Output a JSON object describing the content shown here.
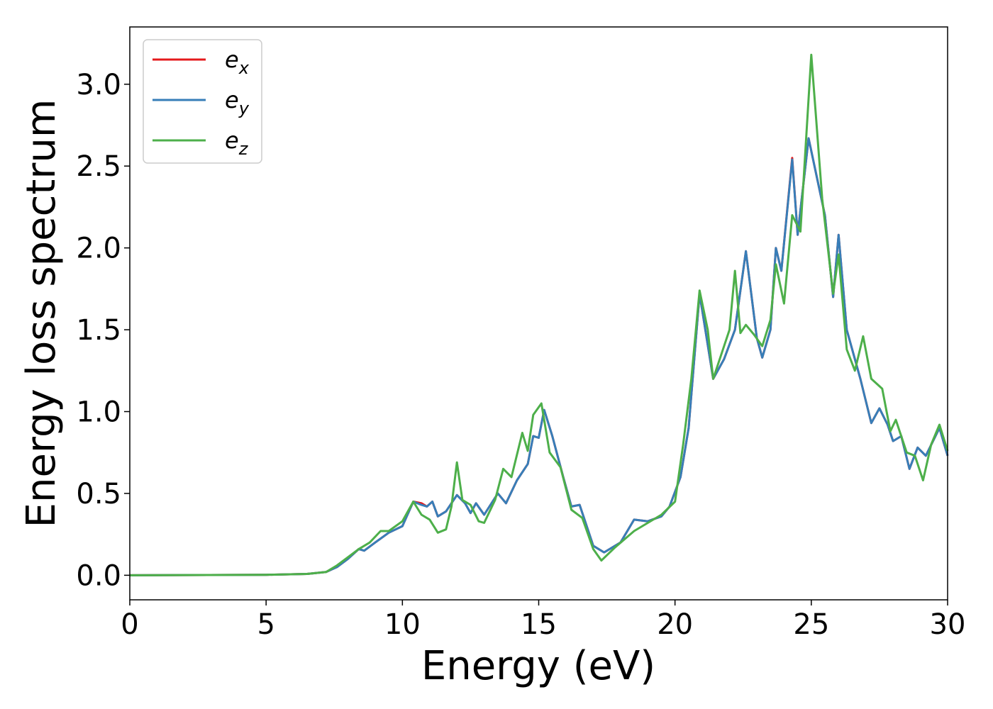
{
  "chart_data": {
    "type": "line",
    "xlabel": "Energy (eV)",
    "ylabel": "Energy loss spectrum",
    "xlim": [
      0,
      30
    ],
    "ylim": [
      -0.15,
      3.35
    ],
    "xticks": [
      0,
      5,
      10,
      15,
      20,
      25,
      30
    ],
    "yticks": [
      0.0,
      0.5,
      1.0,
      1.5,
      2.0,
      2.5,
      3.0
    ],
    "xtick_labels": [
      "0",
      "5",
      "10",
      "15",
      "20",
      "25",
      "30"
    ],
    "ytick_labels": [
      "0.0",
      "0.5",
      "1.0",
      "1.5",
      "2.0",
      "2.5",
      "3.0"
    ],
    "grid": false,
    "legend_position": "top-left",
    "series": [
      {
        "name": "e",
        "subscript": "x",
        "color": "#e41a1c",
        "points": [
          [
            0,
            0
          ],
          [
            5,
            0.003
          ],
          [
            6.5,
            0.008
          ],
          [
            7.2,
            0.02
          ],
          [
            7.6,
            0.05
          ],
          [
            8,
            0.1
          ],
          [
            8.4,
            0.16
          ],
          [
            8.6,
            0.15
          ],
          [
            9,
            0.2
          ],
          [
            9.5,
            0.26
          ],
          [
            10,
            0.3
          ],
          [
            10.4,
            0.45
          ],
          [
            10.7,
            0.44
          ],
          [
            10.9,
            0.42
          ],
          [
            11.1,
            0.45
          ],
          [
            11.3,
            0.36
          ],
          [
            11.6,
            0.39
          ],
          [
            12,
            0.49
          ],
          [
            12.3,
            0.44
          ],
          [
            12.5,
            0.38
          ],
          [
            12.7,
            0.44
          ],
          [
            13,
            0.37
          ],
          [
            13.5,
            0.5
          ],
          [
            13.8,
            0.44
          ],
          [
            14.2,
            0.58
          ],
          [
            14.6,
            0.68
          ],
          [
            14.8,
            0.85
          ],
          [
            15,
            0.84
          ],
          [
            15.2,
            1.01
          ],
          [
            15.5,
            0.85
          ],
          [
            15.9,
            0.6
          ],
          [
            16.2,
            0.42
          ],
          [
            16.5,
            0.43
          ],
          [
            17,
            0.18
          ],
          [
            17.4,
            0.14
          ],
          [
            18,
            0.2
          ],
          [
            18.5,
            0.34
          ],
          [
            19,
            0.33
          ],
          [
            19.5,
            0.36
          ],
          [
            19.8,
            0.42
          ],
          [
            20.2,
            0.6
          ],
          [
            20.5,
            0.9
          ],
          [
            20.9,
            1.72
          ],
          [
            21.4,
            1.2
          ],
          [
            21.8,
            1.32
          ],
          [
            22.2,
            1.5
          ],
          [
            22.6,
            1.98
          ],
          [
            23,
            1.45
          ],
          [
            23.2,
            1.33
          ],
          [
            23.5,
            1.5
          ],
          [
            23.7,
            2.0
          ],
          [
            23.9,
            1.86
          ],
          [
            24.3,
            2.55
          ],
          [
            24.5,
            2.08
          ],
          [
            24.9,
            2.67
          ],
          [
            25.5,
            2.2
          ],
          [
            25.8,
            1.7
          ],
          [
            26,
            2.08
          ],
          [
            26.3,
            1.5
          ],
          [
            26.8,
            1.2
          ],
          [
            27.2,
            0.93
          ],
          [
            27.5,
            1.02
          ],
          [
            27.8,
            0.92
          ],
          [
            28,
            0.82
          ],
          [
            28.3,
            0.85
          ],
          [
            28.6,
            0.65
          ],
          [
            28.9,
            0.78
          ],
          [
            29.2,
            0.73
          ],
          [
            29.7,
            0.9
          ],
          [
            30,
            0.73
          ]
        ]
      },
      {
        "name": "e",
        "subscript": "y",
        "color": "#377eb8",
        "points": [
          [
            0,
            0
          ],
          [
            5,
            0.003
          ],
          [
            6.5,
            0.008
          ],
          [
            7.2,
            0.02
          ],
          [
            7.6,
            0.05
          ],
          [
            8,
            0.1
          ],
          [
            8.4,
            0.16
          ],
          [
            8.6,
            0.15
          ],
          [
            9,
            0.2
          ],
          [
            9.5,
            0.26
          ],
          [
            10,
            0.3
          ],
          [
            10.4,
            0.45
          ],
          [
            10.7,
            0.43
          ],
          [
            10.9,
            0.42
          ],
          [
            11.1,
            0.45
          ],
          [
            11.3,
            0.36
          ],
          [
            11.6,
            0.39
          ],
          [
            12,
            0.49
          ],
          [
            12.3,
            0.44
          ],
          [
            12.5,
            0.38
          ],
          [
            12.7,
            0.44
          ],
          [
            13,
            0.37
          ],
          [
            13.5,
            0.5
          ],
          [
            13.8,
            0.44
          ],
          [
            14.2,
            0.58
          ],
          [
            14.6,
            0.68
          ],
          [
            14.8,
            0.85
          ],
          [
            15,
            0.84
          ],
          [
            15.2,
            1.01
          ],
          [
            15.5,
            0.85
          ],
          [
            15.9,
            0.6
          ],
          [
            16.2,
            0.42
          ],
          [
            16.5,
            0.43
          ],
          [
            17,
            0.18
          ],
          [
            17.4,
            0.14
          ],
          [
            18,
            0.2
          ],
          [
            18.5,
            0.34
          ],
          [
            19,
            0.33
          ],
          [
            19.5,
            0.36
          ],
          [
            19.8,
            0.42
          ],
          [
            20.2,
            0.6
          ],
          [
            20.5,
            0.9
          ],
          [
            20.9,
            1.72
          ],
          [
            21.4,
            1.2
          ],
          [
            21.8,
            1.32
          ],
          [
            22.2,
            1.5
          ],
          [
            22.6,
            1.98
          ],
          [
            23,
            1.45
          ],
          [
            23.2,
            1.33
          ],
          [
            23.5,
            1.5
          ],
          [
            23.7,
            2.0
          ],
          [
            23.9,
            1.86
          ],
          [
            24.3,
            2.54
          ],
          [
            24.5,
            2.08
          ],
          [
            24.9,
            2.67
          ],
          [
            25.5,
            2.2
          ],
          [
            25.8,
            1.7
          ],
          [
            26,
            2.08
          ],
          [
            26.3,
            1.5
          ],
          [
            26.8,
            1.2
          ],
          [
            27.2,
            0.93
          ],
          [
            27.5,
            1.02
          ],
          [
            27.8,
            0.92
          ],
          [
            28,
            0.82
          ],
          [
            28.3,
            0.85
          ],
          [
            28.6,
            0.65
          ],
          [
            28.9,
            0.78
          ],
          [
            29.2,
            0.73
          ],
          [
            29.7,
            0.9
          ],
          [
            30,
            0.73
          ]
        ]
      },
      {
        "name": "e",
        "subscript": "z",
        "color": "#4daf4a",
        "points": [
          [
            0,
            0
          ],
          [
            5,
            0.003
          ],
          [
            6.5,
            0.008
          ],
          [
            7.2,
            0.02
          ],
          [
            7.6,
            0.06
          ],
          [
            8,
            0.11
          ],
          [
            8.4,
            0.16
          ],
          [
            8.8,
            0.2
          ],
          [
            9.2,
            0.27
          ],
          [
            9.5,
            0.27
          ],
          [
            10,
            0.33
          ],
          [
            10.4,
            0.45
          ],
          [
            10.7,
            0.37
          ],
          [
            11,
            0.34
          ],
          [
            11.3,
            0.26
          ],
          [
            11.6,
            0.28
          ],
          [
            11.8,
            0.42
          ],
          [
            12,
            0.69
          ],
          [
            12.2,
            0.46
          ],
          [
            12.5,
            0.43
          ],
          [
            12.8,
            0.33
          ],
          [
            13,
            0.32
          ],
          [
            13.4,
            0.46
          ],
          [
            13.7,
            0.65
          ],
          [
            14,
            0.6
          ],
          [
            14.4,
            0.87
          ],
          [
            14.6,
            0.76
          ],
          [
            14.8,
            0.98
          ],
          [
            15.1,
            1.05
          ],
          [
            15.4,
            0.75
          ],
          [
            15.8,
            0.66
          ],
          [
            16.2,
            0.4
          ],
          [
            16.6,
            0.35
          ],
          [
            17,
            0.16
          ],
          [
            17.3,
            0.09
          ],
          [
            17.8,
            0.17
          ],
          [
            18.5,
            0.27
          ],
          [
            19.5,
            0.37
          ],
          [
            20,
            0.45
          ],
          [
            20.3,
            0.8
          ],
          [
            20.6,
            1.2
          ],
          [
            20.9,
            1.74
          ],
          [
            21.2,
            1.5
          ],
          [
            21.4,
            1.2
          ],
          [
            21.7,
            1.35
          ],
          [
            22,
            1.5
          ],
          [
            22.2,
            1.86
          ],
          [
            22.4,
            1.48
          ],
          [
            22.6,
            1.53
          ],
          [
            22.9,
            1.47
          ],
          [
            23.2,
            1.4
          ],
          [
            23.5,
            1.56
          ],
          [
            23.7,
            1.9
          ],
          [
            24,
            1.66
          ],
          [
            24.3,
            2.2
          ],
          [
            24.6,
            2.1
          ],
          [
            25,
            3.18
          ],
          [
            25.4,
            2.3
          ],
          [
            25.8,
            1.72
          ],
          [
            26,
            1.96
          ],
          [
            26.3,
            1.38
          ],
          [
            26.6,
            1.25
          ],
          [
            26.9,
            1.46
          ],
          [
            27.2,
            1.2
          ],
          [
            27.6,
            1.14
          ],
          [
            27.9,
            0.88
          ],
          [
            28.1,
            0.95
          ],
          [
            28.5,
            0.75
          ],
          [
            28.8,
            0.73
          ],
          [
            29.1,
            0.58
          ],
          [
            29.4,
            0.8
          ],
          [
            29.7,
            0.92
          ],
          [
            30,
            0.76
          ]
        ]
      }
    ]
  }
}
